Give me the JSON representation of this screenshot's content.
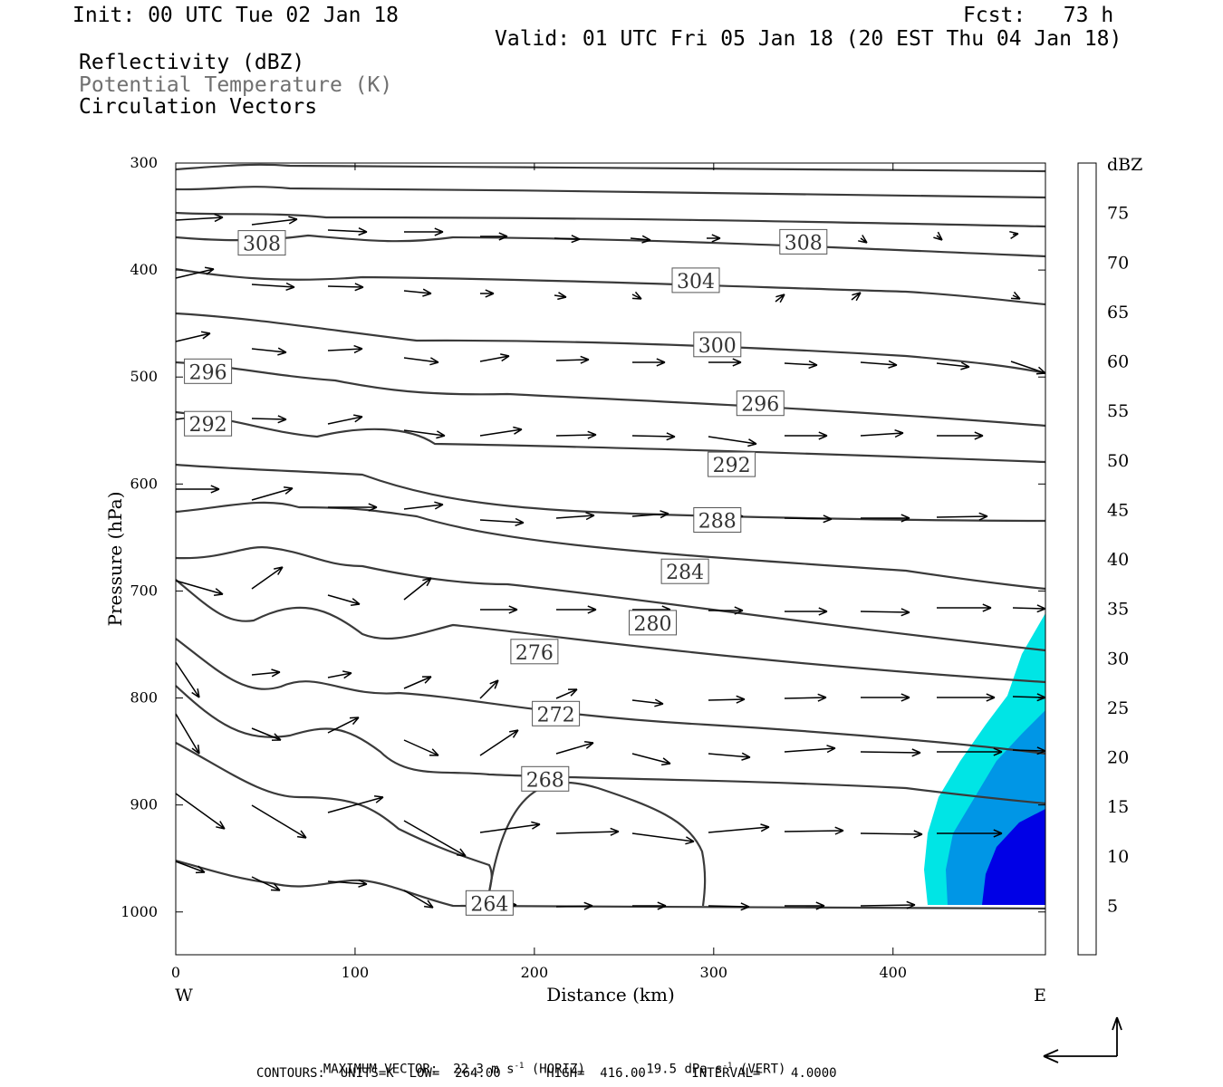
{
  "header": {
    "init": "Init: 00 UTC Tue 02 Jan 18",
    "fcst": "Fcst:   73 h",
    "valid": "Valid: 01 UTC Fri 05 Jan 18 (20 EST Thu 04 Jan 18)",
    "field1": "Reflectivity (dBZ)",
    "field2": "Potential Temperature (K)",
    "field3": "Circulation Vectors"
  },
  "footer": {
    "max_vector_label": "MAXIMUM VECTOR:",
    "max_horiz_value": "22.3 m s",
    "max_horiz_unit": "(HORIZ)",
    "max_vert_value": "19.5 dPa s",
    "max_vert_unit": "(VERT)",
    "exp": "-1",
    "contours": "CONTOURS:  UNITS=K  LOW=  264.00      HIGH=  416.00      INTERVAL=    4.0000"
  },
  "colors": {
    "contour": "#3a3a3a",
    "vector": "#000000",
    "dbz_5": "#00e5e5",
    "dbz_10": "#0096e6",
    "dbz_15": "#0000e6"
  },
  "chart_data": {
    "type": "line",
    "title": "",
    "xlabel": "Distance (km)",
    "ylabel": "Pressure (hPa)",
    "xlim": [
      0,
      485
    ],
    "ylim": [
      1040,
      300
    ],
    "x_ticks": [
      "0",
      "100",
      "200",
      "300",
      "400"
    ],
    "y_ticks": [
      "300",
      "400",
      "500",
      "600",
      "700",
      "800",
      "900",
      "1000"
    ],
    "x_end_labels": {
      "left": "W",
      "right": "E"
    },
    "colorbar": {
      "unit": "dBZ",
      "levels": [
        "5",
        "10",
        "15",
        "20",
        "25",
        "30",
        "35",
        "40",
        "45",
        "50",
        "55",
        "60",
        "65",
        "70",
        "75"
      ],
      "colors": [
        "#ffffff",
        "#00e5e5",
        "#0096e6",
        "#0000e6",
        "#00ff00",
        "#00c800",
        "#009600",
        "#ffff00",
        "#e6be00",
        "#ff9600",
        "#ff0000",
        "#e10000",
        "#b40000",
        "#ff00ff",
        "#9650c8",
        "#ffffff"
      ]
    },
    "theta_contour_labels": [
      {
        "text": "308",
        "x": 48,
        "p": 375
      },
      {
        "text": "308",
        "x": 350,
        "p": 374
      },
      {
        "text": "304",
        "x": 290,
        "p": 410
      },
      {
        "text": "300",
        "x": 302,
        "p": 470
      },
      {
        "text": "296",
        "x": 18,
        "p": 495
      },
      {
        "text": "296",
        "x": 326,
        "p": 525
      },
      {
        "text": "292",
        "x": 18,
        "p": 544
      },
      {
        "text": "292",
        "x": 310,
        "p": 582
      },
      {
        "text": "288",
        "x": 302,
        "p": 634
      },
      {
        "text": "284",
        "x": 284,
        "p": 682
      },
      {
        "text": "280",
        "x": 266,
        "p": 730
      },
      {
        "text": "276",
        "x": 200,
        "p": 757
      },
      {
        "text": "272",
        "x": 212,
        "p": 815
      },
      {
        "text": "268",
        "x": 206,
        "p": 876
      },
      {
        "text": "264",
        "x": 175,
        "p": 992
      }
    ]
  }
}
